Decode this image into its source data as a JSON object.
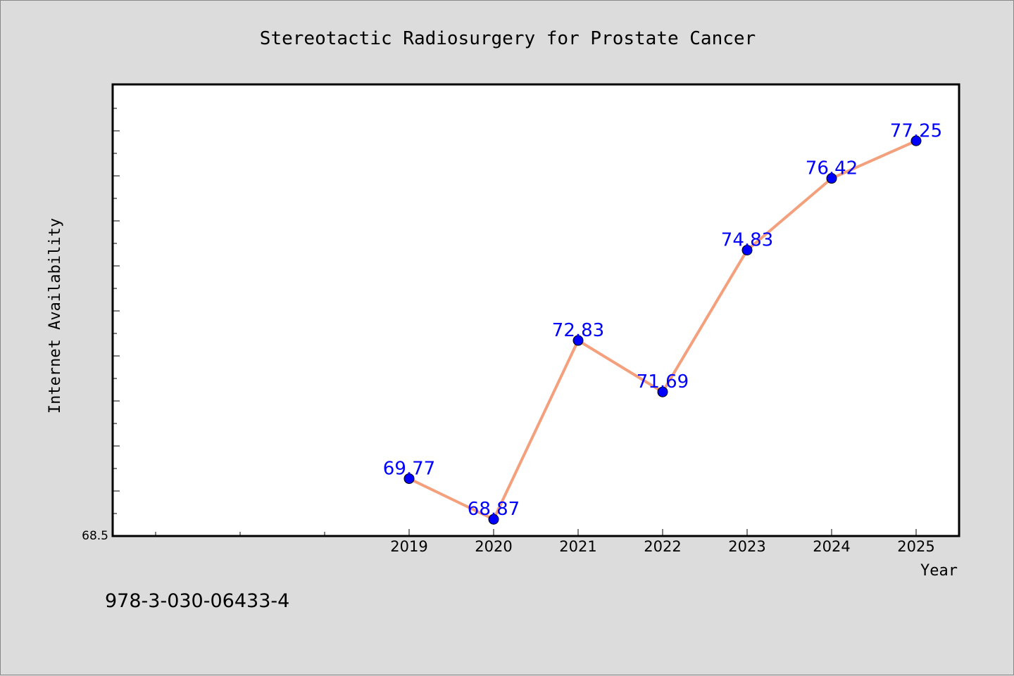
{
  "chart_data": {
    "type": "line",
    "title": "Stereotactic Radiosurgery for Prostate Cancer",
    "xlabel": "Year",
    "ylabel": "Internet Availability",
    "x": [
      "2019",
      "2020",
      "2021",
      "2022",
      "2023",
      "2024",
      "2025"
    ],
    "values": [
      69.77,
      68.87,
      72.83,
      71.69,
      74.83,
      76.42,
      77.25
    ],
    "data_labels": [
      "69.77",
      "68.87",
      "72.83",
      "71.69",
      "74.83",
      "76.42",
      "77.25"
    ],
    "y_min_label": "68.5",
    "ylim": [
      68.5,
      78.5
    ],
    "grid": false,
    "colors": {
      "line": "#f4a07c",
      "marker": "#0000ff",
      "data_label": "#0000ff",
      "plot_bg": "#ffffff",
      "page_bg": "#dcdcdc"
    }
  },
  "footer_text": "978-3-030-06433-4"
}
